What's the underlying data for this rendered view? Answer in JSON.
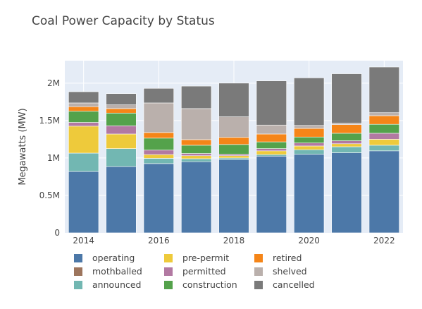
{
  "chart_data": {
    "type": "bar",
    "stacked": true,
    "title": "Coal Power Capacity by Status",
    "ylabel": "Megawatts (MW)",
    "xlabel": "",
    "ylim": [
      0,
      2300000
    ],
    "x_ticks": [
      {
        "value": 2014,
        "label": "2014"
      },
      {
        "value": 2016,
        "label": "2016"
      },
      {
        "value": 2018,
        "label": "2018"
      },
      {
        "value": 2020,
        "label": "2020"
      },
      {
        "value": 2022,
        "label": "2022"
      }
    ],
    "y_ticks": [
      {
        "value": 0,
        "label": "0"
      },
      {
        "value": 500000,
        "label": "0.5M"
      },
      {
        "value": 1000000,
        "label": "1M"
      },
      {
        "value": 1500000,
        "label": "1.5M"
      },
      {
        "value": 2000000,
        "label": "2M"
      }
    ],
    "grid": true,
    "legend_position": "bottom",
    "categories": [
      2014,
      2015,
      2016,
      2017,
      2018,
      2019,
      2020,
      2021,
      2022
    ],
    "series": [
      {
        "name": "operating",
        "color": "#4c78a8",
        "values": [
          820000,
          885000,
          925000,
          950000,
          980000,
          1025000,
          1050000,
          1070000,
          1095000
        ]
      },
      {
        "name": "mothballed",
        "color": "#9d755d",
        "values": [
          0,
          0,
          0,
          0,
          0,
          0,
          0,
          0,
          0
        ]
      },
      {
        "name": "announced",
        "color": "#72b7b2",
        "values": [
          245000,
          240000,
          70000,
          40000,
          20000,
          20000,
          60000,
          80000,
          75000
        ]
      },
      {
        "name": "pre-permit",
        "color": "#eeca3b",
        "values": [
          360000,
          195000,
          50000,
          40000,
          30000,
          50000,
          50000,
          40000,
          80000
        ]
      },
      {
        "name": "permitted",
        "color": "#b279a2",
        "values": [
          50000,
          110000,
          60000,
          30000,
          20000,
          30000,
          40000,
          40000,
          80000
        ]
      },
      {
        "name": "construction",
        "color": "#54a24b",
        "values": [
          150000,
          170000,
          160000,
          110000,
          130000,
          90000,
          80000,
          100000,
          120000
        ]
      },
      {
        "name": "retired",
        "color": "#f58518",
        "values": [
          60000,
          60000,
          75000,
          75000,
          95000,
          105000,
          115000,
          115000,
          115000
        ]
      },
      {
        "name": "shelved",
        "color": "#bab0ac",
        "values": [
          50000,
          50000,
          395000,
          415000,
          275000,
          120000,
          40000,
          20000,
          40000
        ]
      },
      {
        "name": "cancelled",
        "color": "#7a7a7a",
        "values": [
          150000,
          150000,
          195000,
          300000,
          450000,
          590000,
          635000,
          660000,
          610000
        ]
      }
    ],
    "legend_order": [
      "operating",
      "mothballed",
      "announced",
      "pre-permit",
      "permitted",
      "construction",
      "retired",
      "shelved",
      "cancelled"
    ]
  }
}
